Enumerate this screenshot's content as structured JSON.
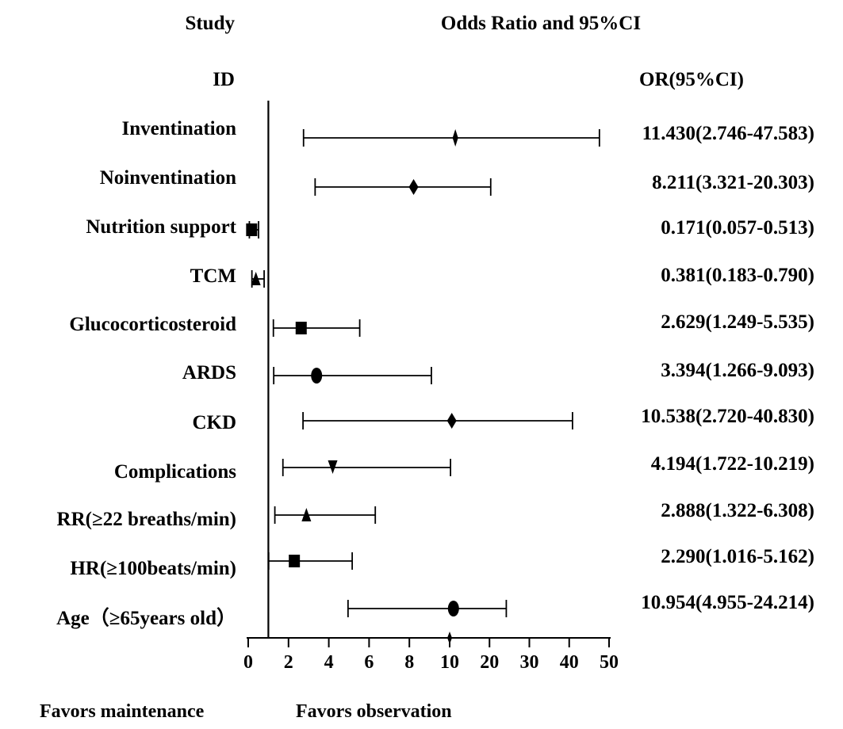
{
  "chart_data": {
    "type": "forest",
    "header": {
      "study": "Study",
      "title": "Odds Ratio and 95%CI",
      "id": "ID",
      "or_column": "OR(95%CI)"
    },
    "rows": [
      {
        "label": "Inventination",
        "or": 11.43,
        "lower": 2.746,
        "upper": 47.583,
        "text": "11.430(2.746-47.583)",
        "marker": "diamond-thin"
      },
      {
        "label": "Noinventination",
        "or": 8.211,
        "lower": 3.321,
        "upper": 20.303,
        "text": "8.211(3.321-20.303)",
        "marker": "diamond"
      },
      {
        "label": "Nutrition support",
        "or": 0.171,
        "lower": 0.057,
        "upper": 0.513,
        "text": "0.171(0.057-0.513)",
        "marker": "square"
      },
      {
        "label": "TCM",
        "or": 0.381,
        "lower": 0.183,
        "upper": 0.79,
        "text": "0.381(0.183-0.790)",
        "marker": "triangle"
      },
      {
        "label": "Glucocorticosteroid",
        "or": 2.629,
        "lower": 1.249,
        "upper": 5.535,
        "text": "2.629(1.249-5.535)",
        "marker": "square"
      },
      {
        "label": "ARDS",
        "or": 3.394,
        "lower": 1.266,
        "upper": 9.093,
        "text": "3.394(1.266-9.093)",
        "marker": "circle"
      },
      {
        "label": "CKD",
        "or": 10.538,
        "lower": 2.72,
        "upper": 40.83,
        "text": "10.538(2.720-40.830)",
        "marker": "diamond"
      },
      {
        "label": "Complications",
        "or": 4.194,
        "lower": 1.722,
        "upper": 10.219,
        "text": "4.194(1.722-10.219)",
        "marker": "triangle-down"
      },
      {
        "label": "RR(≥22 breaths/min)",
        "or": 2.888,
        "lower": 1.322,
        "upper": 6.308,
        "text": "2.888(1.322-6.308)",
        "marker": "triangle"
      },
      {
        "label": "HR(≥100beats/min)",
        "or": 2.29,
        "lower": 1.016,
        "upper": 5.162,
        "text": "2.290(1.016-5.162)",
        "marker": "square"
      },
      {
        "label": "Age（≥65years old）",
        "or": 10.954,
        "lower": 4.955,
        "upper": 24.214,
        "text": "10.954(4.955-24.214)",
        "marker": "circle"
      }
    ],
    "x_ticks": [
      "0",
      "2",
      "4",
      "6",
      "8",
      "10",
      "20",
      "30",
      "40",
      "50"
    ],
    "x_tick_values": [
      0,
      2,
      4,
      6,
      8,
      10,
      20,
      30,
      40,
      50
    ],
    "reference_line": 1,
    "favors_left": "Favors maintenance",
    "favors_right": "Favors observation"
  }
}
